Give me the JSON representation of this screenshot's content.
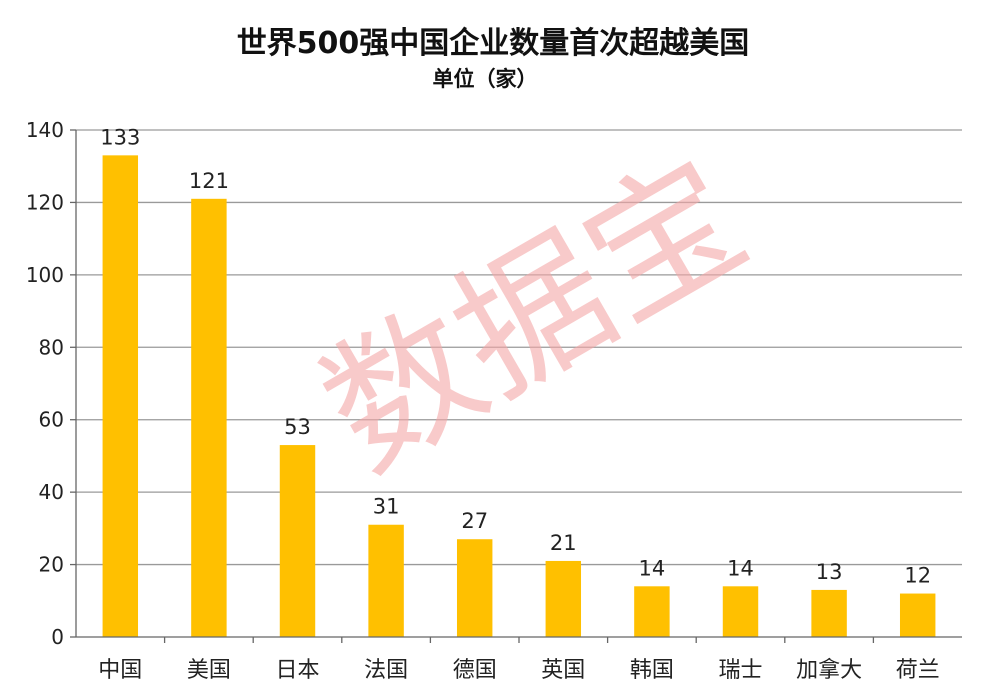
{
  "chart_data": {
    "type": "bar",
    "title": "世界500强中国企业数量首次超越美国",
    "subtitle": "单位（家）",
    "categories": [
      "中国",
      "美国",
      "日本",
      "法国",
      "德国",
      "英国",
      "韩国",
      "瑞士",
      "加拿大",
      "荷兰"
    ],
    "values": [
      133,
      121,
      53,
      31,
      27,
      21,
      14,
      14,
      13,
      12
    ],
    "ylim": [
      0,
      140
    ],
    "yticks": [
      0,
      20,
      40,
      60,
      80,
      100,
      120,
      140
    ],
    "grid": true,
    "bar_color": "#FFC000"
  },
  "watermark": "数据宝"
}
